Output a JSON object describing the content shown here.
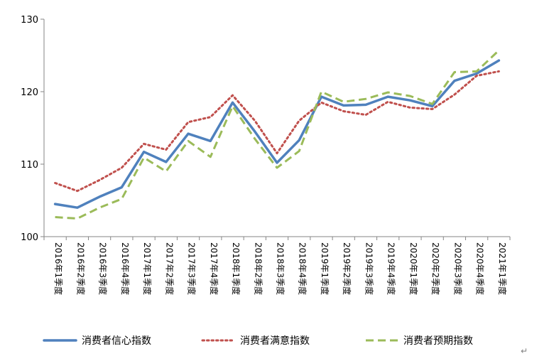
{
  "chart_data": {
    "type": "line",
    "title": "",
    "xlabel": "",
    "ylabel": "",
    "ylim": [
      100,
      130
    ],
    "yticks": [
      100,
      110,
      120,
      130
    ],
    "grid": false,
    "legend_position": "bottom",
    "categories": [
      "2016年1季度",
      "2016年2季度",
      "2016年3季度",
      "2016年4季度",
      "2017年1季度",
      "2017年2季度",
      "2017年3季度",
      "2017年4季度",
      "2018年1季度",
      "2018年2季度",
      "2018年3季度",
      "2018年4季度",
      "2019年1季度",
      "2019年2季度",
      "2019年3季度",
      "2019年4季度",
      "2020年1季度",
      "2020年2季度",
      "2020年3季度",
      "2020年4季度",
      "2021年1季度"
    ],
    "series": [
      {
        "name": "消费者信心指数",
        "color": "#4f81bd",
        "style": "solid",
        "values": [
          104.5,
          104.0,
          105.5,
          106.8,
          111.7,
          110.3,
          114.2,
          113.2,
          118.5,
          114.5,
          110.2,
          113.3,
          119.3,
          118.1,
          118.2,
          119.3,
          118.8,
          118.0,
          121.5,
          122.5,
          124.3
        ]
      },
      {
        "name": "消费者满意指数",
        "color": "#c0504d",
        "style": "dotted",
        "values": [
          107.4,
          106.3,
          107.8,
          109.5,
          112.8,
          112.0,
          115.8,
          116.5,
          119.5,
          116.0,
          111.5,
          116.0,
          118.5,
          117.3,
          116.8,
          118.6,
          117.8,
          117.6,
          119.6,
          122.2,
          122.8
        ]
      },
      {
        "name": "消费者预期指数",
        "color": "#9bbb59",
        "style": "dashed",
        "values": [
          102.7,
          102.5,
          104.0,
          105.2,
          110.9,
          109.0,
          113.2,
          111.0,
          118.0,
          113.5,
          109.5,
          111.8,
          120.0,
          118.6,
          119.0,
          119.9,
          119.4,
          118.3,
          122.7,
          122.8,
          125.7
        ]
      }
    ]
  },
  "stray_mark": "↵"
}
